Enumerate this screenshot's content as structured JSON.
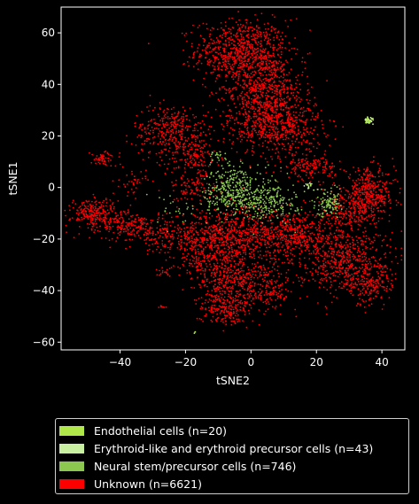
{
  "chart_data": {
    "type": "scatter",
    "xlabel": "tSNE2",
    "ylabel": "tSNE1",
    "xlim": [
      -58,
      47
    ],
    "ylim": [
      -63,
      70
    ],
    "xticks": [
      -40,
      -20,
      0,
      20,
      40
    ],
    "yticks": [
      -60,
      -40,
      -20,
      0,
      20,
      40,
      60
    ],
    "grid": false,
    "legend_position": "below",
    "series": [
      {
        "name": "Endothelial cells (n=20)",
        "color": "#b0e84a",
        "count": 20,
        "clusters": [
          {
            "cx": 36,
            "cy": 26,
            "sx": 0.8,
            "sy": 0.6,
            "n": 14
          },
          {
            "cx": -17,
            "cy": -56,
            "sx": 0.3,
            "sy": 0.5,
            "n": 3
          },
          {
            "cx": 17,
            "cy": 1,
            "sx": 0.6,
            "sy": 0.4,
            "n": 3
          }
        ]
      },
      {
        "name": "Erythroid-like and erythroid precursor cells (n=43)",
        "color": "#c8f0a0",
        "count": 43,
        "clusters": [
          {
            "cx": 36,
            "cy": 26,
            "sx": 0.6,
            "sy": 0.6,
            "n": 30
          },
          {
            "cx": 18,
            "cy": 1,
            "sx": 1.0,
            "sy": 0.7,
            "n": 13
          }
        ]
      },
      {
        "name": "Neural stem/precursor cells (n=746)",
        "color": "#8cc850",
        "count": 746,
        "clusters": [
          {
            "cx": -6,
            "cy": -1,
            "sx": 4,
            "sy": 5,
            "n": 330
          },
          {
            "cx": 5,
            "cy": -5,
            "sx": 4.5,
            "sy": 4,
            "n": 260
          },
          {
            "cx": 24,
            "cy": -6,
            "sx": 2,
            "sy": 2.5,
            "n": 110
          },
          {
            "cx": -10,
            "cy": 12,
            "sx": 2,
            "sy": 2,
            "n": 20
          },
          {
            "cx": -22,
            "cy": -8,
            "sx": 6,
            "sy": 4,
            "n": 26
          }
        ]
      },
      {
        "name": "Unknown (n=6621)",
        "color": "#ff0000",
        "count": 6621,
        "clusters": [
          {
            "cx": -3,
            "cy": 53,
            "sx": 7,
            "sy": 6,
            "n": 700
          },
          {
            "cx": 4,
            "cy": 38,
            "sx": 6,
            "sy": 8,
            "n": 650
          },
          {
            "cx": 8,
            "cy": 24,
            "sx": 7,
            "sy": 6,
            "n": 560
          },
          {
            "cx": -24,
            "cy": 22,
            "sx": 6,
            "sy": 5,
            "n": 340
          },
          {
            "cx": -18,
            "cy": 12,
            "sx": 4,
            "sy": 4,
            "n": 140
          },
          {
            "cx": -45,
            "cy": 11,
            "sx": 2,
            "sy": 1.5,
            "n": 55
          },
          {
            "cx": -36,
            "cy": 2,
            "sx": 2,
            "sy": 2.5,
            "n": 40
          },
          {
            "cx": -18,
            "cy": 0,
            "sx": 4,
            "sy": 3,
            "n": 100
          },
          {
            "cx": 36,
            "cy": -3,
            "sx": 4,
            "sy": 5,
            "n": 420
          },
          {
            "cx": 28,
            "cy": -10,
            "sx": 4,
            "sy": 4,
            "n": 180
          },
          {
            "cx": 18,
            "cy": 8,
            "sx": 4,
            "sy": 2.5,
            "n": 150
          },
          {
            "cx": -48,
            "cy": -10,
            "sx": 3.5,
            "sy": 3,
            "n": 230
          },
          {
            "cx": -36,
            "cy": -15,
            "sx": 5,
            "sy": 3,
            "n": 210
          },
          {
            "cx": -25,
            "cy": -20,
            "sx": 5,
            "sy": 3,
            "n": 110
          },
          {
            "cx": -8,
            "cy": -20,
            "sx": 8,
            "sy": 6,
            "n": 760
          },
          {
            "cx": 12,
            "cy": -18,
            "sx": 6,
            "sy": 5,
            "n": 460
          },
          {
            "cx": 28,
            "cy": -28,
            "sx": 7,
            "sy": 6,
            "n": 560
          },
          {
            "cx": 36,
            "cy": -38,
            "sx": 4,
            "sy": 4,
            "n": 170
          },
          {
            "cx": 0,
            "cy": -38,
            "sx": 7,
            "sy": 5,
            "n": 420
          },
          {
            "cx": -8,
            "cy": -47,
            "sx": 4,
            "sy": 3,
            "n": 200
          },
          {
            "cx": -26,
            "cy": -33,
            "sx": 1,
            "sy": 1,
            "n": 16
          },
          {
            "cx": -27,
            "cy": -46,
            "sx": 0.5,
            "sy": 0.7,
            "n": 8
          },
          {
            "cx": -12,
            "cy": -33,
            "sx": 4,
            "sy": 4,
            "n": 142
          }
        ]
      }
    ]
  }
}
